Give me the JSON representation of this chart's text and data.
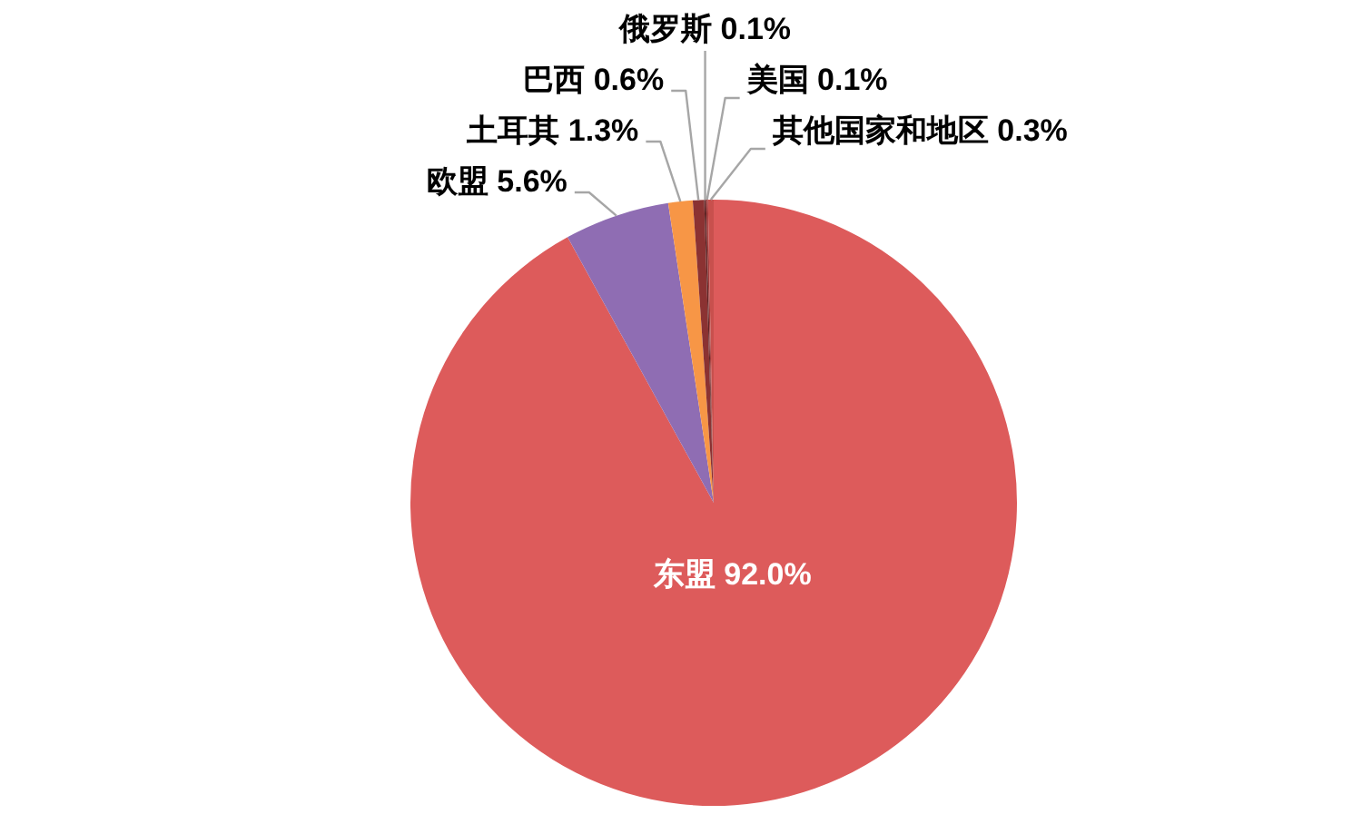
{
  "chart_data": {
    "type": "pie",
    "categories": [
      "东盟",
      "欧盟",
      "土耳其",
      "巴西",
      "俄罗斯",
      "美国",
      "其他国家和地区"
    ],
    "values": [
      92.0,
      5.6,
      1.3,
      0.6,
      0.1,
      0.1,
      0.3
    ],
    "colors": [
      "#dd5b5b",
      "#8f6db3",
      "#f79646",
      "#8b3232",
      "#5e2424",
      "#a33c3c",
      "#c8504d"
    ],
    "value_labels": [
      "92.0%",
      "5.6%",
      "1.3%",
      "0.6%",
      "0.1%",
      "0.1%",
      "0.3%"
    ],
    "legend": false
  }
}
